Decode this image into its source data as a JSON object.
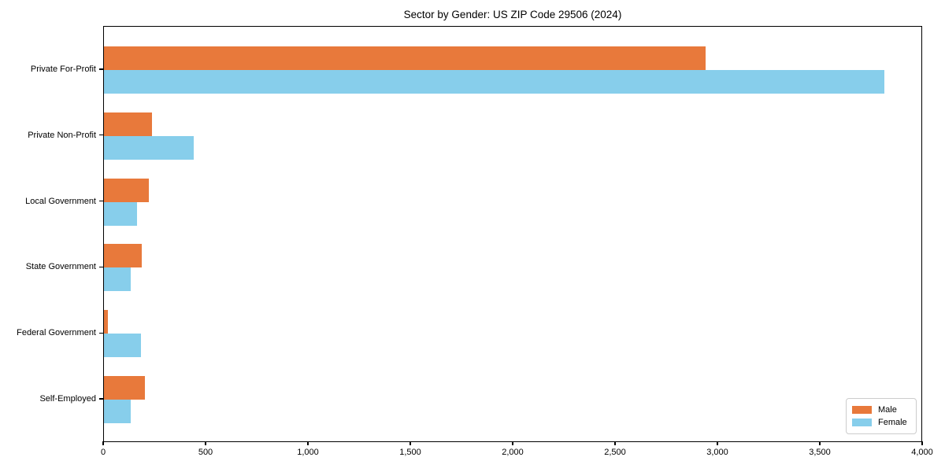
{
  "title": "Sector by Gender: US ZIP Code 29506 (2024)",
  "colors": {
    "male": "#E8793B",
    "female": "#87CEEB",
    "axis": "#000000",
    "legend_border": "#cccccc",
    "background": "#ffffff"
  },
  "chart_data": {
    "type": "bar",
    "orientation": "horizontal",
    "title": "Sector by Gender: US ZIP Code 29506 (2024)",
    "xlabel": "",
    "ylabel": "",
    "grid": false,
    "categories": [
      "Private For-Profit",
      "Private Non-Profit",
      "Local Government",
      "State Government",
      "Federal Government",
      "Self-Employed"
    ],
    "series": [
      {
        "name": "Male",
        "color": "#E8793B",
        "values": [
          2940,
          235,
          220,
          185,
          20,
          200
        ]
      },
      {
        "name": "Female",
        "color": "#87CEEB",
        "values": [
          3810,
          440,
          160,
          130,
          180,
          130
        ]
      }
    ],
    "xlim": [
      0,
      4000
    ],
    "x_ticks": [
      0,
      500,
      1000,
      1500,
      2000,
      2500,
      3000,
      3500,
      4000
    ],
    "x_tick_labels": [
      "0",
      "500",
      "1,000",
      "1,500",
      "2,000",
      "2,500",
      "3,000",
      "3,500",
      "4,000"
    ],
    "legend": {
      "position": "lower right",
      "entries": [
        "Male",
        "Female"
      ]
    }
  }
}
